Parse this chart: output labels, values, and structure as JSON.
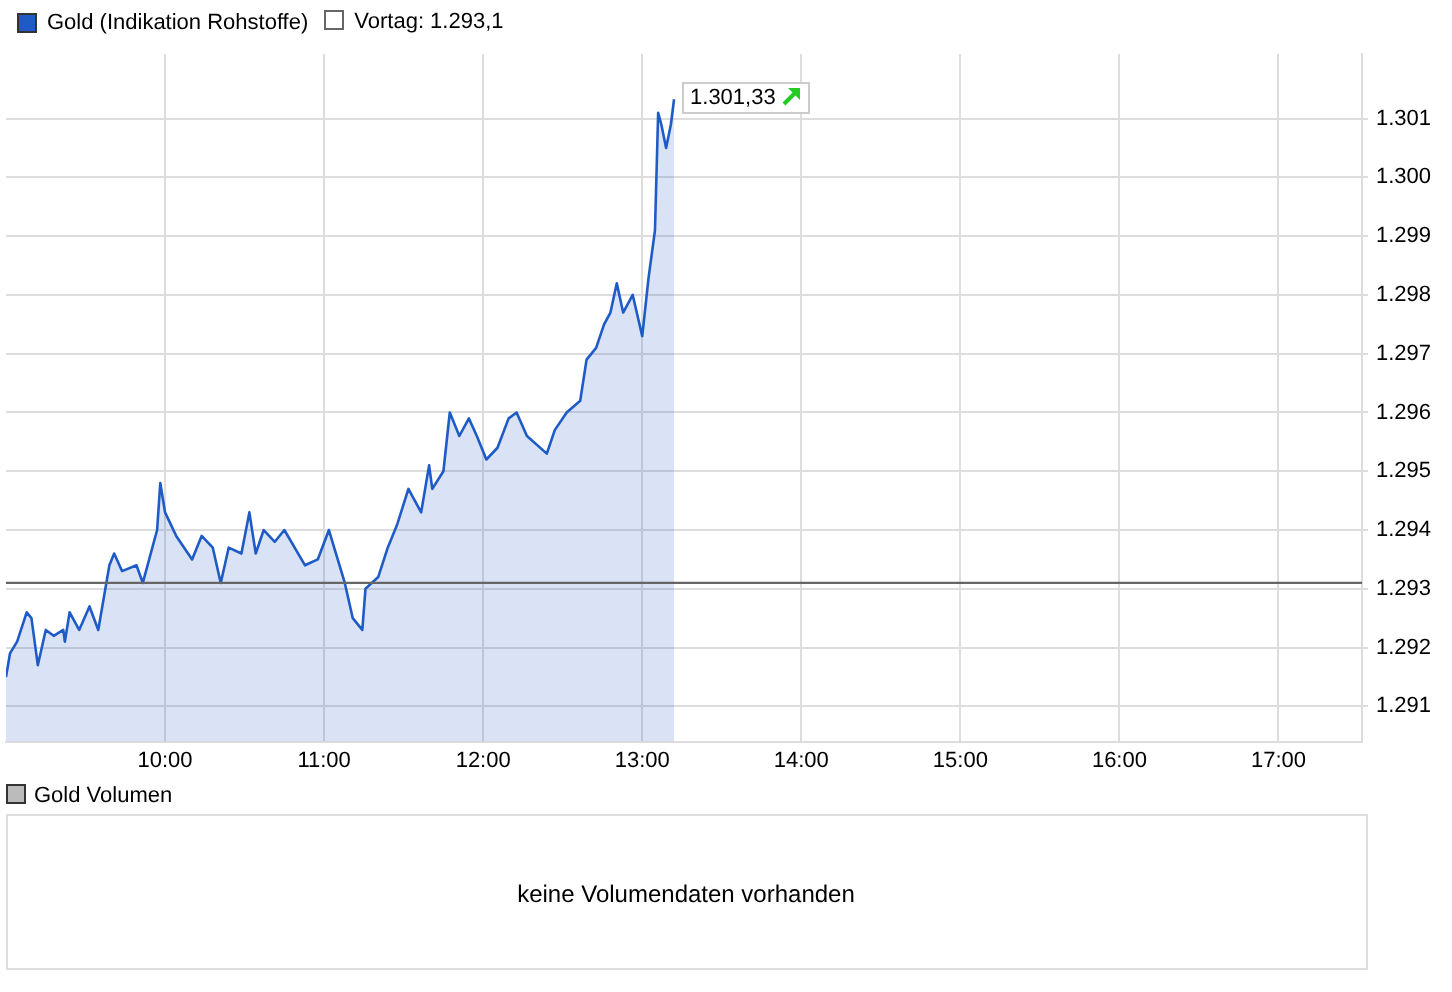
{
  "chart_data": {
    "type": "area",
    "xlim": [
      9,
      17.525
    ],
    "ylim": [
      1290.4,
      1302.1
    ],
    "xticks": [
      {
        "value": 10,
        "label": "10:00"
      },
      {
        "value": 11,
        "label": "11:00"
      },
      {
        "value": 12,
        "label": "12:00"
      },
      {
        "value": 13,
        "label": "13:00"
      },
      {
        "value": 14,
        "label": "14:00"
      },
      {
        "value": 15,
        "label": "15:00"
      },
      {
        "value": 16,
        "label": "16:00"
      },
      {
        "value": 17,
        "label": "17:00"
      }
    ],
    "yticks": [
      {
        "value": 1291,
        "label": "1.291"
      },
      {
        "value": 1292,
        "label": "1.292"
      },
      {
        "value": 1293,
        "label": "1.293"
      },
      {
        "value": 1294,
        "label": "1.294"
      },
      {
        "value": 1295,
        "label": "1.295"
      },
      {
        "value": 1296,
        "label": "1.296"
      },
      {
        "value": 1297,
        "label": "1.297"
      },
      {
        "value": 1298,
        "label": "1.298"
      },
      {
        "value": 1299,
        "label": "1.299"
      },
      {
        "value": 1300,
        "label": "1.300"
      },
      {
        "value": 1301,
        "label": "1.301"
      }
    ],
    "grid": true,
    "legend": "top left",
    "marker": "none",
    "line_style": "solid",
    "series": [
      {
        "name": "Gold (Indikation Rohstoffe)",
        "color": "#1f5bc6",
        "x": [
          9.0,
          9.025,
          9.07,
          9.13,
          9.16,
          9.2,
          9.25,
          9.3,
          9.36,
          9.37,
          9.4,
          9.46,
          9.525,
          9.58,
          9.65,
          9.68,
          9.73,
          9.82,
          9.86,
          9.9,
          9.95,
          9.97,
          10.0,
          10.07,
          10.17,
          10.23,
          10.3,
          10.35,
          10.4,
          10.48,
          10.53,
          10.57,
          10.62,
          10.69,
          10.75,
          10.88,
          10.96,
          11.03,
          11.13,
          11.18,
          11.24,
          11.26,
          11.34,
          11.4,
          11.46,
          11.53,
          11.61,
          11.66,
          11.68,
          11.75,
          11.79,
          11.85,
          11.91,
          11.96,
          12.02,
          12.09,
          12.16,
          12.21,
          12.275,
          12.4,
          12.45,
          12.525,
          12.61,
          12.65,
          12.71,
          12.76,
          12.8,
          12.84,
          12.88,
          12.94,
          13.0,
          13.04,
          13.08,
          13.1,
          13.12,
          13.15,
          13.18,
          13.2
        ],
        "values": [
          1291.5,
          1291.9,
          1292.1,
          1292.6,
          1292.5,
          1291.7,
          1292.3,
          1292.2,
          1292.3,
          1292.1,
          1292.6,
          1292.3,
          1292.7,
          1292.3,
          1293.4,
          1293.6,
          1293.3,
          1293.4,
          1293.1,
          1293.5,
          1294.0,
          1294.8,
          1294.3,
          1293.9,
          1293.5,
          1293.9,
          1293.7,
          1293.1,
          1293.7,
          1293.6,
          1294.3,
          1293.6,
          1294.0,
          1293.8,
          1294.0,
          1293.4,
          1293.5,
          1294.0,
          1293.1,
          1292.5,
          1292.3,
          1293.0,
          1293.2,
          1293.7,
          1294.1,
          1294.7,
          1294.3,
          1295.1,
          1294.7,
          1295.0,
          1296.0,
          1295.6,
          1295.9,
          1295.6,
          1295.2,
          1295.4,
          1295.9,
          1296.0,
          1295.6,
          1295.3,
          1295.7,
          1296.0,
          1296.2,
          1296.9,
          1297.1,
          1297.5,
          1297.7,
          1298.2,
          1297.7,
          1298.0,
          1297.3,
          1298.3,
          1299.1,
          1301.1,
          1300.9,
          1300.5,
          1300.9,
          1301.33
        ]
      }
    ],
    "ref_lines": [
      {
        "axis": "y",
        "value": 1293.1,
        "label": "Vortag: 1.293,1",
        "color": "#666666"
      }
    ],
    "annotations": [
      {
        "text": "1.301,33",
        "x": 13.2,
        "y": 1301.33
      },
      "Gold Volumen",
      "keine Volumendaten vorhanden"
    ]
  }
}
